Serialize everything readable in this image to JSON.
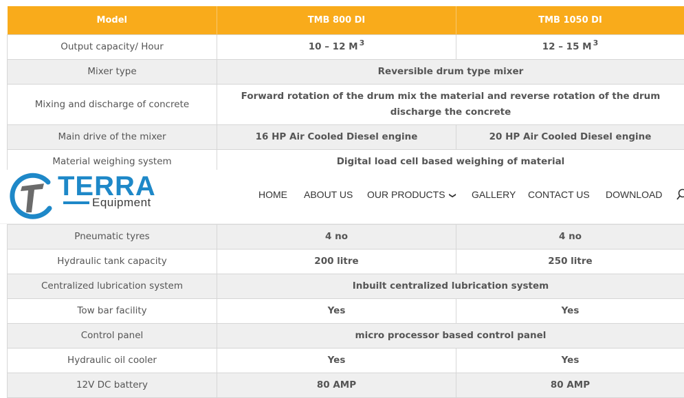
{
  "table": {
    "headers": [
      "Model",
      "TMB 800 DI",
      "TMB 1050 DI"
    ],
    "rows_top": [
      {
        "label": "Output capacity/ Hour",
        "v1": "10 – 12 M",
        "v1_sup": "3",
        "v2": "12 – 15 M",
        "v2_sup": "3"
      },
      {
        "label": "Mixer type",
        "span": "Reversible drum type mixer"
      },
      {
        "label": "Mixing and discharge of concrete",
        "span": "Forward rotation of the drum mix the material and reverse rotation of the drum discharge the concrete"
      },
      {
        "label": "Main drive of the mixer",
        "v1": "16 HP Air Cooled Diesel engine",
        "v2": "20 HP Air Cooled Diesel engine"
      },
      {
        "label": "Material weighing system",
        "span": "Digital load cell based weighing of material"
      }
    ],
    "rows_bottom": [
      {
        "label": "Pneumatic tyres",
        "v1": "4 no",
        "v2": "4 no"
      },
      {
        "label": "Hydraulic tank capacity",
        "v1": "200 litre",
        "v2": "250 litre"
      },
      {
        "label": "Centralized lubrication system",
        "span": "Inbuilt centralized lubrication system"
      },
      {
        "label": "Tow bar facility",
        "v1": "Yes",
        "v2": "Yes"
      },
      {
        "label": "Control panel",
        "span": "micro processor based control panel"
      },
      {
        "label": "Hydraulic oil cooler",
        "v1": "Yes",
        "v2": "Yes"
      },
      {
        "label": "12V DC battery",
        "v1": "80 AMP",
        "v2": "80 AMP"
      }
    ]
  },
  "header": {
    "logo_text": "TERRA",
    "logo_sub": "Equipment",
    "nav": [
      "HOME",
      "ABOUT US",
      "OUR PRODUCTS",
      "GALLERY",
      "CONTACT US",
      "DOWNLOAD"
    ],
    "dropdown_icon": "chevron-down-icon",
    "search_icon": "search-icon"
  },
  "colors": {
    "header_orange": "#f9ab1b",
    "brand_blue": "#1e88c8",
    "row_alt": "#efefef"
  }
}
